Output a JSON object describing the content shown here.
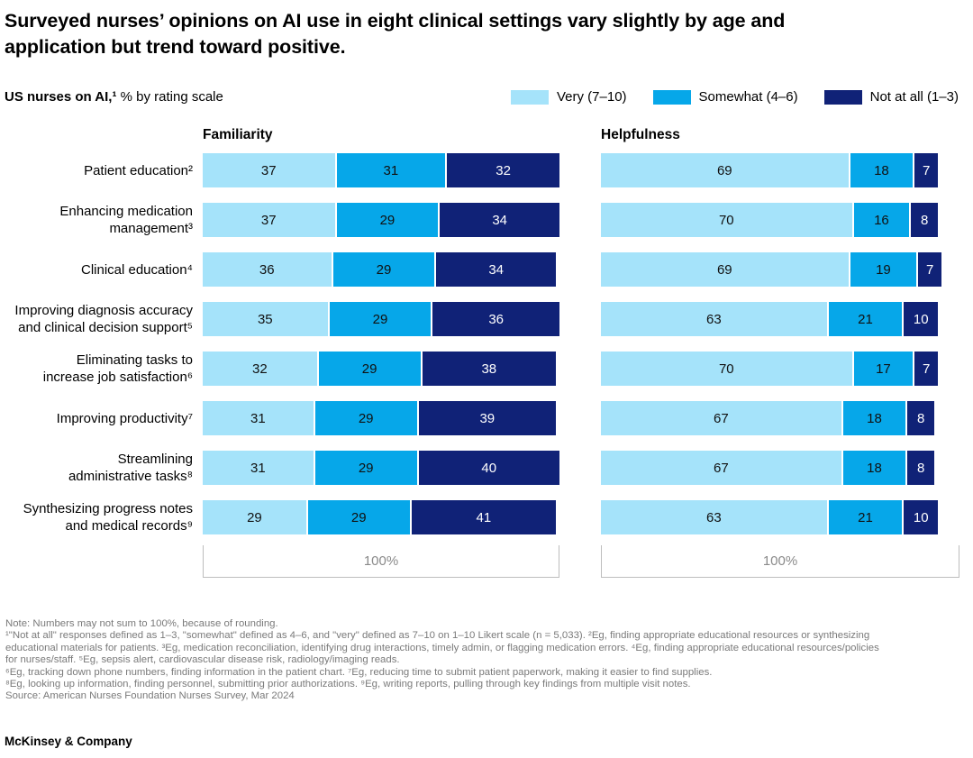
{
  "title_lines": [
    "Surveyed nurses’ opinions on AI use in eight clinical settings vary slightly by age and",
    "application but trend toward positive."
  ],
  "subtitle": {
    "bold": "US nurses on AI,¹",
    "rest": " % by rating scale"
  },
  "legend": [
    {
      "label": "Very (7–10)",
      "color": "#A5E3FA"
    },
    {
      "label": "Somewhat (4–6)",
      "color": "#06A7E9"
    },
    {
      "label": "Not at all (1–3)",
      "color": "#102277"
    }
  ],
  "chart_data": {
    "type": "bar",
    "stacked": true,
    "orientation": "horizontal",
    "xlim": [
      0,
      100
    ],
    "axis_label": "100%",
    "panels": {
      "left": "Familiarity",
      "right": "Helpfulness"
    },
    "series_names": [
      "Very (7–10)",
      "Somewhat (4–6)",
      "Not at all (1–3)"
    ],
    "rows": [
      {
        "label_lines": [
          "Patient education²"
        ],
        "familiarity": [
          37,
          31,
          32
        ],
        "helpfulness": [
          69,
          18,
          7
        ]
      },
      {
        "label_lines": [
          "Enhancing medication",
          "management³"
        ],
        "familiarity": [
          37,
          29,
          34
        ],
        "helpfulness": [
          70,
          16,
          8
        ]
      },
      {
        "label_lines": [
          "Clinical education⁴"
        ],
        "familiarity": [
          36,
          29,
          34
        ],
        "helpfulness": [
          69,
          19,
          7
        ]
      },
      {
        "label_lines": [
          "Improving diagnosis accuracy",
          "and clinical decision support⁵"
        ],
        "familiarity": [
          35,
          29,
          36
        ],
        "helpfulness": [
          63,
          21,
          10
        ]
      },
      {
        "label_lines": [
          "Eliminating tasks to",
          "increase job satisfaction⁶"
        ],
        "familiarity": [
          32,
          29,
          38
        ],
        "helpfulness": [
          70,
          17,
          7
        ]
      },
      {
        "label_lines": [
          "Improving productivity⁷"
        ],
        "familiarity": [
          31,
          29,
          39
        ],
        "helpfulness": [
          67,
          18,
          8
        ]
      },
      {
        "label_lines": [
          "Streamlining",
          "administrative tasks⁸"
        ],
        "familiarity": [
          31,
          29,
          40
        ],
        "helpfulness": [
          67,
          18,
          8
        ]
      },
      {
        "label_lines": [
          "Synthesizing progress notes",
          "and medical records⁹"
        ],
        "familiarity": [
          29,
          29,
          41
        ],
        "helpfulness": [
          63,
          21,
          10
        ]
      }
    ]
  },
  "notes": [
    "Note: Numbers may not sum to 100%, because of rounding.",
    "¹\"Not at all\" responses defined as 1–3, \"somewhat\" defined as 4–6, and \"very\" defined as 7–10 on 1–10 Likert scale (n = 5,033). ²Eg, finding appropriate educational resources or synthesizing",
    "educational materials for patients. ³Eg, medication reconciliation, identifying drug interactions, timely admin, or flagging medication errors. ⁴Eg, finding appropriate educational resources/policies",
    "for nurses/staff. ⁵Eg, sepsis alert, cardiovascular disease risk, radiology/imaging reads.",
    "⁶Eg, tracking down phone numbers, finding information in the patient chart. ⁷Eg, reducing time to submit patient paperwork, making it easier to find supplies.",
    "⁸Eg, looking up information, finding personnel, submitting prior authorizations. ⁹Eg, writing reports, pulling through key findings from multiple visit notes."
  ],
  "source": "Source: American Nurses Foundation Nurses Survey, Mar 2024",
  "brand": "McKinsey & Company"
}
